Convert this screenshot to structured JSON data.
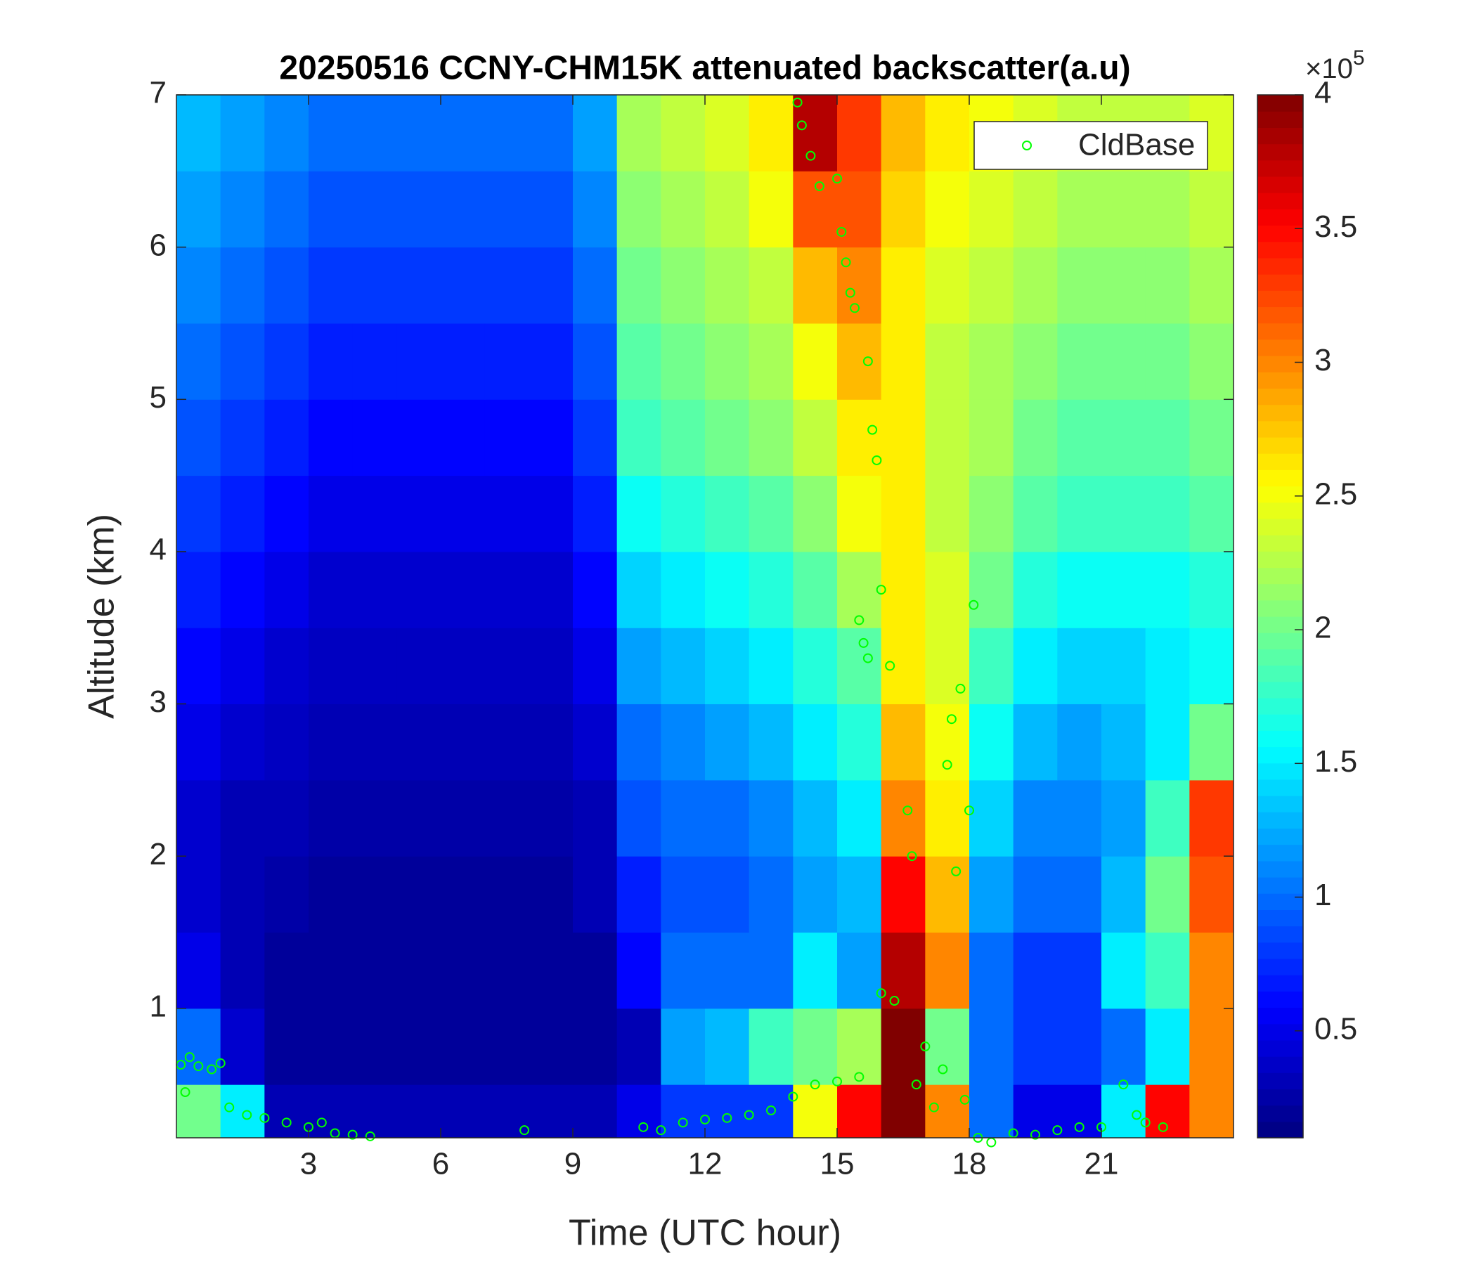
{
  "chart_data": {
    "type": "heatmap",
    "title": "20250516 CCNY-CHM15K attenuated backscatter(a.u)",
    "x_label": "Time (UTC hour)",
    "y_label": "Altitude (km)",
    "xlim": [
      0,
      24
    ],
    "ylim": [
      0.15,
      7
    ],
    "xticks": [
      3,
      6,
      9,
      12,
      15,
      18,
      21
    ],
    "yticks": [
      1,
      2,
      3,
      4,
      5,
      6,
      7
    ],
    "x_edges": [
      0,
      1,
      2,
      3,
      4,
      5,
      6,
      7,
      8,
      9,
      10,
      11,
      12,
      13,
      14,
      15,
      16,
      17,
      18,
      19,
      20,
      21,
      22,
      23,
      24
    ],
    "y_edges": [
      0.15,
      0.5,
      1,
      1.5,
      2,
      2.5,
      3,
      3.5,
      4,
      4.5,
      5,
      5.5,
      6,
      6.5,
      7
    ],
    "z": [
      [
        2,
        1.5,
        0.3,
        0.3,
        0.3,
        0.3,
        0.3,
        0.3,
        0.3,
        0.3,
        0.5,
        0.8,
        0.8,
        0.8,
        2.5,
        3.5,
        4,
        3,
        1,
        0.5,
        0.5,
        1.5,
        3.5,
        3
      ],
      [
        1,
        0.4,
        0.2,
        0.2,
        0.2,
        0.2,
        0.2,
        0.2,
        0.2,
        0.2,
        0.3,
        1.2,
        1.3,
        1.8,
        2,
        2.2,
        4,
        2,
        1,
        0.8,
        0.8,
        1,
        1.5,
        3
      ],
      [
        0.5,
        0.3,
        0.2,
        0.2,
        0.2,
        0.2,
        0.2,
        0.2,
        0.2,
        0.2,
        0.6,
        1,
        1,
        1,
        1.5,
        1.2,
        3.8,
        3,
        1,
        0.8,
        0.8,
        1.5,
        1.8,
        3
      ],
      [
        0.4,
        0.3,
        0.25,
        0.2,
        0.2,
        0.2,
        0.2,
        0.2,
        0.2,
        0.3,
        0.7,
        0.9,
        0.9,
        1,
        1.2,
        1.3,
        3.5,
        2.8,
        1.2,
        1,
        1,
        1.3,
        2,
        3.2
      ],
      [
        0.4,
        0.3,
        0.3,
        0.25,
        0.25,
        0.25,
        0.25,
        0.25,
        0.25,
        0.3,
        0.9,
        1,
        1,
        1.1,
        1.3,
        1.5,
        3,
        2.6,
        1.4,
        1.1,
        1.1,
        1.2,
        1.8,
        3.3
      ],
      [
        0.5,
        0.4,
        0.35,
        0.3,
        0.3,
        0.3,
        0.3,
        0.3,
        0.3,
        0.4,
        1,
        1.1,
        1.2,
        1.3,
        1.5,
        1.7,
        2.8,
        2.5,
        1.6,
        1.3,
        1.2,
        1.3,
        1.5,
        2
      ],
      [
        0.6,
        0.5,
        0.4,
        0.35,
        0.35,
        0.35,
        0.35,
        0.35,
        0.35,
        0.5,
        1.2,
        1.3,
        1.4,
        1.5,
        1.7,
        1.9,
        2.6,
        2.4,
        1.8,
        1.5,
        1.4,
        1.4,
        1.5,
        1.6
      ],
      [
        0.7,
        0.6,
        0.5,
        0.4,
        0.4,
        0.4,
        0.4,
        0.4,
        0.4,
        0.6,
        1.4,
        1.5,
        1.6,
        1.7,
        1.9,
        2.2,
        2.6,
        2.4,
        2,
        1.7,
        1.6,
        1.6,
        1.6,
        1.7
      ],
      [
        0.8,
        0.7,
        0.6,
        0.5,
        0.5,
        0.5,
        0.5,
        0.5,
        0.5,
        0.7,
        1.6,
        1.7,
        1.8,
        1.9,
        2.1,
        2.5,
        2.6,
        2.3,
        2.1,
        1.9,
        1.8,
        1.8,
        1.8,
        1.9
      ],
      [
        0.9,
        0.8,
        0.7,
        0.6,
        0.6,
        0.6,
        0.6,
        0.6,
        0.6,
        0.8,
        1.8,
        1.9,
        2,
        2.1,
        2.3,
        2.6,
        2.6,
        2.3,
        2.2,
        2,
        1.9,
        1.9,
        1.9,
        2
      ],
      [
        1,
        0.9,
        0.8,
        0.7,
        0.7,
        0.7,
        0.7,
        0.7,
        0.7,
        0.9,
        1.9,
        2,
        2.1,
        2.2,
        2.5,
        2.8,
        2.6,
        2.3,
        2.2,
        2.1,
        2,
        2,
        2,
        2.1
      ],
      [
        1.1,
        1,
        0.9,
        0.8,
        0.8,
        0.8,
        0.8,
        0.8,
        0.8,
        1,
        2,
        2.1,
        2.2,
        2.3,
        2.8,
        3,
        2.6,
        2.4,
        2.3,
        2.2,
        2.1,
        2.1,
        2.1,
        2.2
      ],
      [
        1.2,
        1.1,
        1,
        0.9,
        0.9,
        0.9,
        0.9,
        0.9,
        0.9,
        1.1,
        2.1,
        2.2,
        2.3,
        2.5,
        3.2,
        3.2,
        2.7,
        2.5,
        2.4,
        2.3,
        2.2,
        2.2,
        2.2,
        2.3
      ],
      [
        1.3,
        1.2,
        1.1,
        1,
        1,
        1,
        1,
        1,
        1,
        1.2,
        2.2,
        2.3,
        2.4,
        2.6,
        3.8,
        3.3,
        2.8,
        2.6,
        2.5,
        2.4,
        2.3,
        2.3,
        2.3,
        2.4
      ]
    ],
    "colorbar": {
      "colormap": "jet",
      "clim": [
        0.1,
        4
      ],
      "ticks": [
        0.5,
        1,
        1.5,
        2,
        2.5,
        3,
        3.5,
        4
      ],
      "multiplier_base": "×10",
      "multiplier_exponent": "5"
    },
    "legend_position": "upper right",
    "series": [
      {
        "type": "scatter",
        "name": "CldBase",
        "color": "#00ff00",
        "x": [
          0.1,
          0.2,
          0.3,
          0.5,
          0.8,
          1.0,
          1.2,
          1.6,
          2.0,
          2.5,
          3.0,
          3.3,
          3.6,
          4.0,
          4.4,
          7.9,
          10.6,
          11.0,
          11.5,
          12.0,
          12.5,
          13.0,
          13.5,
          14.0,
          14.5,
          15.0,
          15.5,
          14.1,
          14.2,
          14.4,
          14.6,
          15.0,
          15.1,
          15.2,
          15.3,
          15.4,
          15.7,
          15.8,
          15.9,
          16.0,
          15.5,
          15.6,
          15.7,
          16.2,
          16.0,
          16.3,
          16.6,
          16.7,
          16.8,
          17.0,
          17.2,
          17.4,
          17.5,
          17.6,
          17.7,
          17.8,
          17.9,
          18.0,
          18.1,
          18.2,
          18.5,
          19.0,
          19.5,
          20.0,
          20.5,
          21.0,
          21.5,
          21.8,
          22.0,
          22.4
        ],
        "y": [
          0.63,
          0.45,
          0.68,
          0.62,
          0.6,
          0.64,
          0.35,
          0.3,
          0.28,
          0.25,
          0.22,
          0.25,
          0.18,
          0.17,
          0.16,
          0.2,
          0.22,
          0.2,
          0.25,
          0.27,
          0.28,
          0.3,
          0.33,
          0.42,
          0.5,
          0.52,
          0.55,
          6.95,
          6.8,
          6.6,
          6.4,
          6.45,
          6.1,
          5.9,
          5.7,
          5.6,
          5.25,
          4.8,
          4.6,
          3.75,
          3.55,
          3.4,
          3.3,
          3.25,
          1.1,
          1.05,
          2.3,
          2.0,
          0.5,
          0.75,
          0.35,
          0.6,
          2.6,
          2.9,
          1.9,
          3.1,
          0.4,
          2.3,
          3.65,
          0.15,
          0.12,
          0.18,
          0.17,
          0.2,
          0.22,
          0.22,
          0.5,
          0.3,
          0.25,
          0.22
        ]
      }
    ]
  }
}
